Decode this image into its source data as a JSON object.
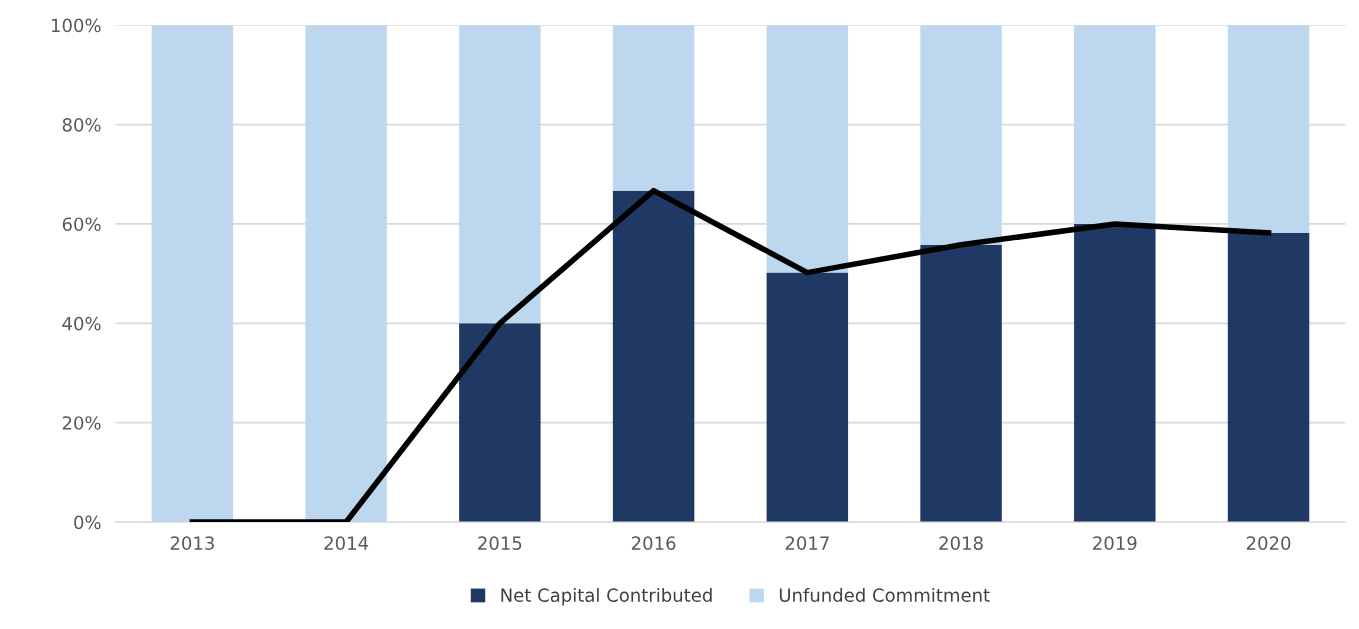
{
  "chart_data": {
    "type": "bar",
    "stacked": true,
    "categories": [
      "2013",
      "2014",
      "2015",
      "2016",
      "2017",
      "2018",
      "2019",
      "2020"
    ],
    "series": [
      {
        "name": "Net Capital Contributed",
        "color": "#203864",
        "values": [
          0,
          0,
          40,
          66.7,
          50.2,
          55.8,
          60,
          58.2
        ]
      },
      {
        "name": "Unfunded Commitment",
        "color": "#bdd7ee",
        "values": [
          100,
          100,
          60,
          33.3,
          49.8,
          44.2,
          40,
          41.8
        ]
      },
      {
        "type": "line",
        "color": "#000000",
        "values": [
          0,
          0,
          40,
          66.7,
          50.2,
          55.8,
          60,
          58.2
        ]
      }
    ],
    "ylim": [
      0,
      100
    ],
    "yticks": [
      {
        "value": 0,
        "label": "0%"
      },
      {
        "value": 20,
        "label": "20%"
      },
      {
        "value": 40,
        "label": "40%"
      },
      {
        "value": 60,
        "label": "60%"
      },
      {
        "value": 80,
        "label": "80%"
      },
      {
        "value": 100,
        "label": "100%"
      }
    ],
    "grid": "y",
    "legend": "bottom",
    "marker": "none",
    "line_style": "solid"
  }
}
